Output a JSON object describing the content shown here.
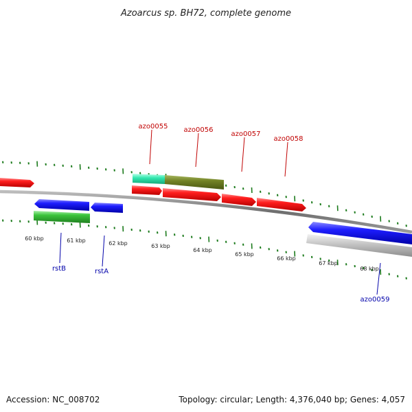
{
  "title": "Azoarcus sp. BH72, complete genome",
  "footer": {
    "accession": "Accession: NC_008702",
    "summary": "Topology: circular; Length: 4,376,040 bp; Genes: 4,057"
  },
  "colors": {
    "tick": "#1b7a1b",
    "backbone": "#7a7a7a",
    "forward_gene": "#e8141c",
    "reverse_gene": "#1414e6",
    "green_feature": "#35b535",
    "teal_feature": "#2be0a8",
    "olive_feature": "#6f7f1e",
    "grey_feature": "#b8b8b8",
    "label_red": "#c00000",
    "label_blue": "#0000aa"
  },
  "scale_labels": [
    "60 kbp",
    "61 kbp",
    "62 kbp",
    "63 kbp",
    "64 kbp",
    "65 kbp",
    "66 kbp",
    "67 kbp",
    "68 kbp"
  ],
  "gene_labels": [
    {
      "text": "azo0055",
      "color": "red"
    },
    {
      "text": "azo0056",
      "color": "red"
    },
    {
      "text": "azo0057",
      "color": "red"
    },
    {
      "text": "azo0058",
      "color": "red"
    },
    {
      "text": "rstB",
      "color": "blue"
    },
    {
      "text": "rstA",
      "color": "blue"
    },
    {
      "text": "azo0059",
      "color": "blue"
    }
  ]
}
